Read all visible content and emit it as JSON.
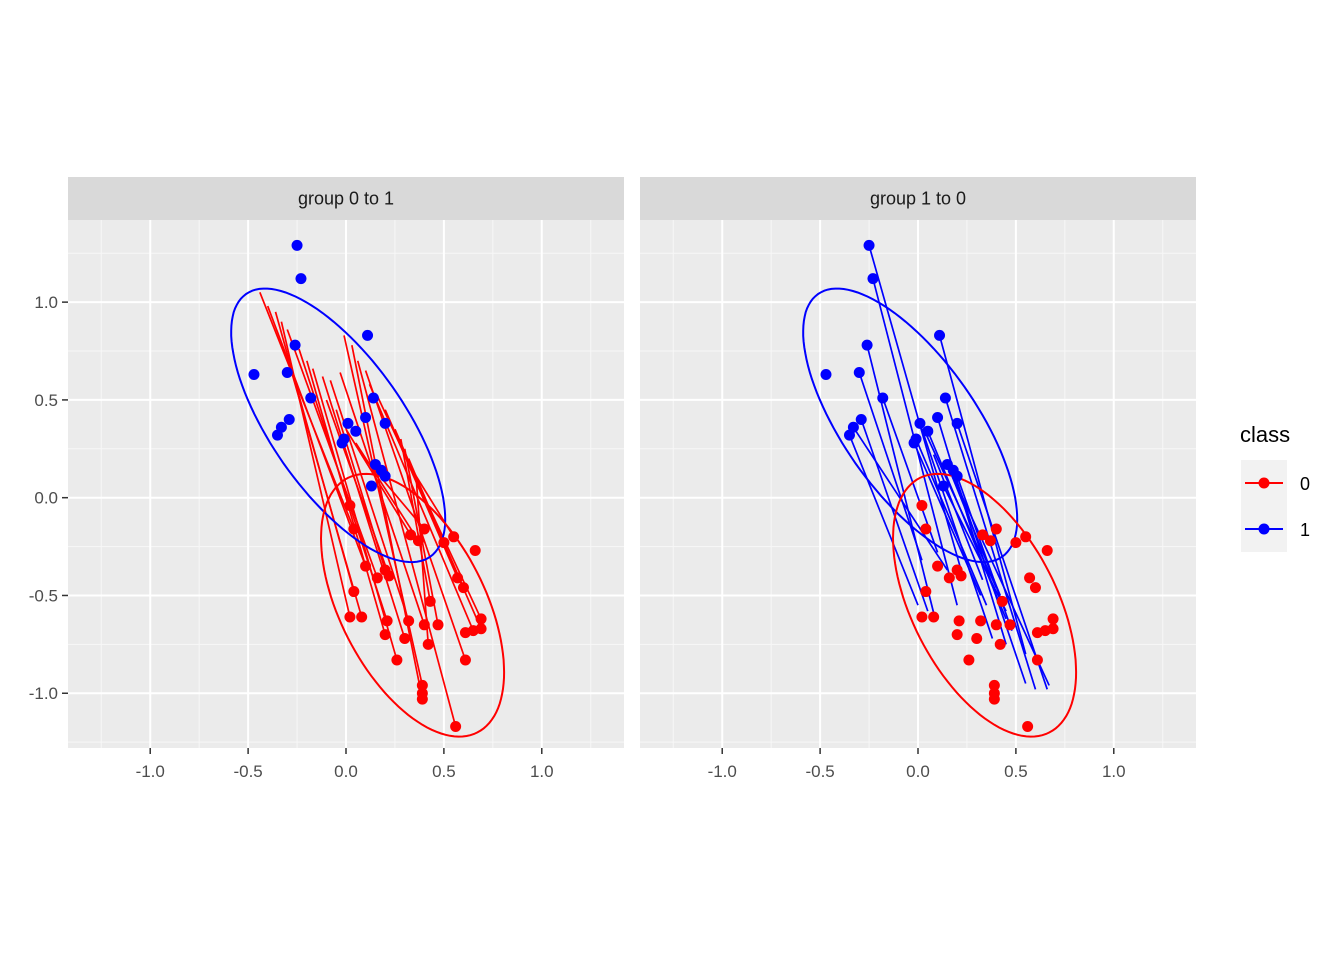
{
  "chart_data": {
    "type": "scatter",
    "xlim": [
      -1.42,
      1.42
    ],
    "ylim": [
      -1.28,
      1.42
    ],
    "x_ticks": [
      -1.0,
      -0.5,
      0.0,
      0.5,
      1.0
    ],
    "x_tick_labels": [
      "-1.0",
      "-0.5",
      "0.0",
      "0.5",
      "1.0"
    ],
    "y_ticks": [
      1.0,
      0.5,
      0.0,
      -0.5,
      -1.0
    ],
    "y_tick_labels": [
      "1.0",
      "0.5",
      "0.0",
      "-0.5",
      "-1.0"
    ],
    "grid": true,
    "legend": {
      "title": "class",
      "position": "right",
      "entries": [
        {
          "label": "0",
          "color": "#FF0000"
        },
        {
          "label": "1",
          "color": "#0000FF"
        }
      ]
    },
    "colors": {
      "class_0": "#FF0000",
      "class_1": "#0000FF",
      "panel_bg": "#EBEBEB",
      "strip_bg": "#D9D9D9",
      "grid": "#FFFFFF"
    },
    "points": {
      "class_1": [
        [
          -0.25,
          1.29
        ],
        [
          -0.23,
          1.12
        ],
        [
          0.11,
          0.83
        ],
        [
          -0.26,
          0.78
        ],
        [
          -0.47,
          0.63
        ],
        [
          -0.3,
          0.64
        ],
        [
          -0.18,
          0.51
        ],
        [
          0.14,
          0.51
        ],
        [
          -0.29,
          0.4
        ],
        [
          -0.33,
          0.36
        ],
        [
          -0.35,
          0.32
        ],
        [
          0.1,
          0.41
        ],
        [
          0.2,
          0.38
        ],
        [
          0.01,
          0.38
        ],
        [
          0.05,
          0.34
        ],
        [
          -0.01,
          0.3
        ],
        [
          -0.02,
          0.28
        ],
        [
          0.15,
          0.17
        ],
        [
          0.18,
          0.14
        ],
        [
          0.2,
          0.11
        ],
        [
          0.13,
          0.06
        ]
      ],
      "class_0": [
        [
          0.02,
          -0.04
        ],
        [
          0.04,
          -0.16
        ],
        [
          0.1,
          -0.35
        ],
        [
          0.04,
          -0.48
        ],
        [
          0.02,
          -0.61
        ],
        [
          0.08,
          -0.61
        ],
        [
          0.16,
          -0.41
        ],
        [
          0.2,
          -0.37
        ],
        [
          0.22,
          -0.4
        ],
        [
          0.21,
          -0.63
        ],
        [
          0.2,
          -0.7
        ],
        [
          0.26,
          -0.83
        ],
        [
          0.3,
          -0.72
        ],
        [
          0.32,
          -0.63
        ],
        [
          0.4,
          -0.65
        ],
        [
          0.37,
          -0.22
        ],
        [
          0.4,
          -0.16
        ],
        [
          0.33,
          -0.19
        ],
        [
          0.5,
          -0.23
        ],
        [
          0.55,
          -0.2
        ],
        [
          0.57,
          -0.41
        ],
        [
          0.6,
          -0.46
        ],
        [
          0.43,
          -0.53
        ],
        [
          0.42,
          -0.75
        ],
        [
          0.47,
          -0.65
        ],
        [
          0.61,
          -0.69
        ],
        [
          0.65,
          -0.68
        ],
        [
          0.69,
          -0.62
        ],
        [
          0.69,
          -0.67
        ],
        [
          0.61,
          -0.83
        ],
        [
          0.39,
          -0.96
        ],
        [
          0.39,
          -1.0
        ],
        [
          0.39,
          -1.03
        ],
        [
          0.56,
          -1.17
        ],
        [
          0.66,
          -0.27
        ]
      ]
    },
    "ellipses": {
      "class_1": {
        "center": [
          -0.04,
          0.37
        ],
        "semi_major": 0.82,
        "semi_minor": 0.34,
        "angle_deg": -55
      },
      "class_0": {
        "center": [
          0.34,
          -0.55
        ],
        "semi_major": 0.73,
        "semi_minor": 0.37,
        "angle_deg": -63
      }
    },
    "panels": [
      {
        "strip_label": "group 0 to 1",
        "segment_color": "#FF0000",
        "segments": [
          [
            -0.44,
            1.05,
            0.04,
            -0.16
          ],
          [
            -0.4,
            0.98,
            0.1,
            -0.35
          ],
          [
            -0.36,
            0.95,
            0.04,
            -0.48
          ],
          [
            -0.33,
            0.9,
            0.02,
            -0.61
          ],
          [
            -0.3,
            0.86,
            0.16,
            -0.41
          ],
          [
            -0.24,
            0.76,
            0.21,
            -0.63
          ],
          [
            -0.2,
            0.7,
            0.2,
            -0.7
          ],
          [
            -0.17,
            0.66,
            0.26,
            -0.83
          ],
          [
            -0.12,
            0.62,
            0.3,
            -0.72
          ],
          [
            -0.08,
            0.6,
            0.32,
            -0.63
          ],
          [
            -0.03,
            0.64,
            0.4,
            -0.65
          ],
          [
            -0.01,
            0.83,
            0.39,
            -0.96
          ],
          [
            0.03,
            0.78,
            0.39,
            -1.03
          ],
          [
            0.06,
            0.7,
            0.56,
            -1.17
          ],
          [
            0.1,
            0.65,
            0.61,
            -0.83
          ],
          [
            0.12,
            0.58,
            0.65,
            -0.68
          ],
          [
            0.16,
            0.52,
            0.69,
            -0.62
          ],
          [
            0.2,
            0.45,
            0.69,
            -0.67
          ],
          [
            0.22,
            0.4,
            0.57,
            -0.41
          ],
          [
            0.25,
            0.35,
            0.6,
            -0.46
          ],
          [
            0.28,
            0.3,
            0.43,
            -0.53
          ],
          [
            0.3,
            0.25,
            0.47,
            -0.65
          ],
          [
            0.32,
            0.2,
            0.5,
            -0.23
          ],
          [
            0.34,
            0.14,
            0.55,
            -0.2
          ],
          [
            0.36,
            0.08,
            0.42,
            -0.75
          ],
          [
            -0.28,
            0.65,
            0.08,
            -0.61
          ],
          [
            -0.1,
            0.5,
            0.22,
            -0.4
          ],
          [
            -0.05,
            0.45,
            0.2,
            -0.37
          ],
          [
            0.0,
            0.35,
            0.33,
            -0.19
          ],
          [
            0.05,
            0.28,
            0.37,
            -0.22
          ],
          [
            0.08,
            0.22,
            0.4,
            -0.16
          ]
        ]
      },
      {
        "strip_label": "group 1 to 0",
        "segment_color": "#0000FF",
        "segments": [
          [
            -0.25,
            1.29,
            0.22,
            -0.37
          ],
          [
            -0.23,
            1.12,
            0.2,
            -0.55
          ],
          [
            0.11,
            0.83,
            0.55,
            -0.8
          ],
          [
            -0.26,
            0.78,
            0.09,
            -0.63
          ],
          [
            -0.3,
            0.64,
            0.02,
            -0.32
          ],
          [
            -0.18,
            0.51,
            0.1,
            -0.28
          ],
          [
            0.14,
            0.51,
            0.6,
            -0.98
          ],
          [
            -0.29,
            0.4,
            0.05,
            -0.58
          ],
          [
            -0.33,
            0.36,
            0.15,
            -0.37
          ],
          [
            -0.35,
            0.32,
            0.0,
            -0.55
          ],
          [
            0.1,
            0.41,
            0.45,
            -0.75
          ],
          [
            0.2,
            0.38,
            0.66,
            -0.98
          ],
          [
            0.01,
            0.38,
            0.38,
            -0.72
          ],
          [
            0.05,
            0.34,
            0.45,
            -0.62
          ],
          [
            -0.01,
            0.3,
            0.35,
            -0.55
          ],
          [
            -0.02,
            0.28,
            0.32,
            -0.5
          ],
          [
            0.15,
            0.17,
            0.67,
            -0.96
          ],
          [
            0.18,
            0.14,
            0.55,
            -0.95
          ],
          [
            0.2,
            0.11,
            0.48,
            -0.68
          ],
          [
            0.13,
            0.06,
            0.45,
            -0.58
          ],
          [
            0.03,
            0.35,
            0.4,
            -0.46
          ],
          [
            0.08,
            0.22,
            0.33,
            -0.42
          ],
          [
            0.17,
            0.12,
            0.42,
            -0.5
          ]
        ]
      }
    ]
  }
}
